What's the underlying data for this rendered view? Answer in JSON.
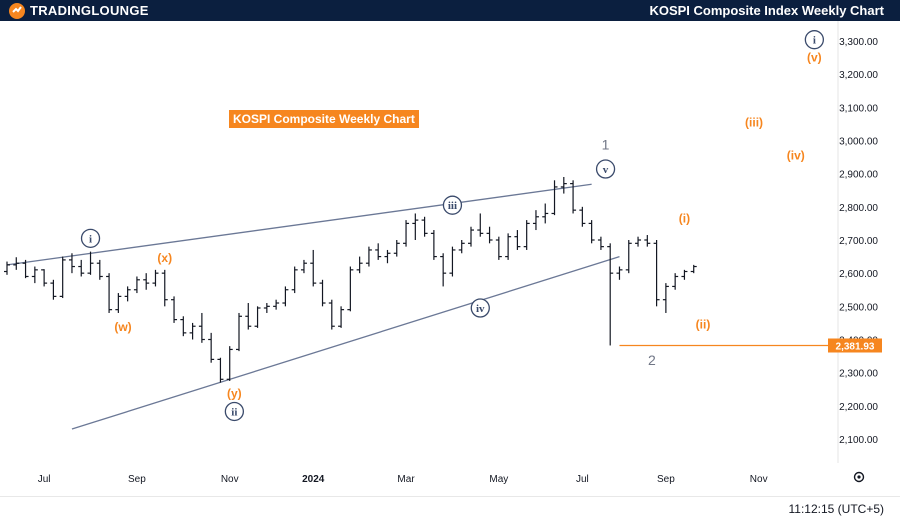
{
  "header": {
    "logo_text": "TradingLounge",
    "logo_display": "TRADINGLOUNGE",
    "title": "KOSPI Composite Index Weekly Chart"
  },
  "badge": {
    "text": "KOSPI Composite Weekly Chart"
  },
  "footer": {
    "clock": "11:12:15 (UTC+5)"
  },
  "colors": {
    "header_bg": "#0b1f3f",
    "orange": "#f6861f",
    "navy": "#3a4a6b",
    "price_tag": "#f6861f"
  },
  "chart_data": {
    "type": "ohlc",
    "title": "KOSPI Composite Weekly Chart",
    "y_axis": {
      "min": 2050,
      "max": 3350,
      "ticks": [
        2100,
        2200,
        2300,
        2400,
        2500,
        2600,
        2700,
        2800,
        2900,
        3000,
        3100,
        3200,
        3300
      ],
      "tick_labels": [
        "2,100.00",
        "2,200.00",
        "2,300.00",
        "2,400.00",
        "2,500.00",
        "2,600.00",
        "2,700.00",
        "2,800.00",
        "2,900.00",
        "3,000.00",
        "3,100.00",
        "3,200.00",
        "3,300.00"
      ]
    },
    "x_axis": {
      "first_week": "2023-06-05",
      "last_week": "2024-11-25",
      "labels": [
        {
          "text": "Jul",
          "week": 4
        },
        {
          "text": "Sep",
          "week": 14
        },
        {
          "text": "Nov",
          "week": 24
        },
        {
          "text": "2024",
          "week": 33
        },
        {
          "text": "Mar",
          "week": 43
        },
        {
          "text": "May",
          "week": 53
        },
        {
          "text": "Jul",
          "week": 62
        },
        {
          "text": "Sep",
          "week": 71
        },
        {
          "text": "Nov",
          "week": 81
        }
      ]
    },
    "ohlc": [
      [
        2605,
        2635,
        2595,
        2625
      ],
      [
        2625,
        2648,
        2610,
        2630
      ],
      [
        2630,
        2640,
        2585,
        2590
      ],
      [
        2590,
        2620,
        2570,
        2610
      ],
      [
        2610,
        2612,
        2560,
        2570
      ],
      [
        2570,
        2580,
        2520,
        2530
      ],
      [
        2530,
        2650,
        2525,
        2640
      ],
      [
        2640,
        2660,
        2600,
        2620
      ],
      [
        2620,
        2640,
        2590,
        2600
      ],
      [
        2600,
        2665,
        2595,
        2630
      ],
      [
        2630,
        2640,
        2580,
        2590
      ],
      [
        2590,
        2600,
        2480,
        2490
      ],
      [
        2490,
        2540,
        2480,
        2530
      ],
      [
        2530,
        2560,
        2515,
        2550
      ],
      [
        2550,
        2590,
        2540,
        2580
      ],
      [
        2580,
        2600,
        2550,
        2570
      ],
      [
        2570,
        2610,
        2560,
        2600
      ],
      [
        2600,
        2610,
        2500,
        2520
      ],
      [
        2520,
        2530,
        2450,
        2460
      ],
      [
        2460,
        2470,
        2410,
        2420
      ],
      [
        2420,
        2450,
        2400,
        2440
      ],
      [
        2440,
        2480,
        2390,
        2400
      ],
      [
        2400,
        2420,
        2330,
        2340
      ],
      [
        2340,
        2345,
        2270,
        2280
      ],
      [
        2280,
        2380,
        2275,
        2370
      ],
      [
        2370,
        2480,
        2365,
        2470
      ],
      [
        2470,
        2510,
        2430,
        2440
      ],
      [
        2440,
        2500,
        2435,
        2495
      ],
      [
        2495,
        2510,
        2480,
        2500
      ],
      [
        2500,
        2520,
        2490,
        2510
      ],
      [
        2510,
        2560,
        2500,
        2550
      ],
      [
        2550,
        2620,
        2540,
        2610
      ],
      [
        2610,
        2640,
        2600,
        2630
      ],
      [
        2630,
        2670,
        2560,
        2570
      ],
      [
        2570,
        2580,
        2500,
        2510
      ],
      [
        2510,
        2520,
        2430,
        2440
      ],
      [
        2440,
        2500,
        2435,
        2490
      ],
      [
        2490,
        2620,
        2485,
        2610
      ],
      [
        2610,
        2650,
        2600,
        2630
      ],
      [
        2630,
        2680,
        2620,
        2670
      ],
      [
        2670,
        2690,
        2640,
        2650
      ],
      [
        2650,
        2670,
        2630,
        2660
      ],
      [
        2660,
        2700,
        2650,
        2690
      ],
      [
        2690,
        2760,
        2680,
        2750
      ],
      [
        2750,
        2780,
        2700,
        2760
      ],
      [
        2760,
        2770,
        2710,
        2720
      ],
      [
        2720,
        2730,
        2640,
        2650
      ],
      [
        2650,
        2660,
        2560,
        2600
      ],
      [
        2600,
        2680,
        2590,
        2670
      ],
      [
        2670,
        2700,
        2660,
        2690
      ],
      [
        2690,
        2740,
        2680,
        2730
      ],
      [
        2730,
        2780,
        2710,
        2720
      ],
      [
        2720,
        2740,
        2690,
        2700
      ],
      [
        2700,
        2710,
        2640,
        2650
      ],
      [
        2650,
        2720,
        2640,
        2710
      ],
      [
        2710,
        2730,
        2670,
        2680
      ],
      [
        2680,
        2760,
        2670,
        2750
      ],
      [
        2750,
        2790,
        2730,
        2770
      ],
      [
        2770,
        2810,
        2750,
        2780
      ],
      [
        2780,
        2880,
        2775,
        2860
      ],
      [
        2860,
        2890,
        2840,
        2870
      ],
      [
        2870,
        2880,
        2780,
        2790
      ],
      [
        2790,
        2800,
        2740,
        2750
      ],
      [
        2750,
        2760,
        2690,
        2700
      ],
      [
        2700,
        2710,
        2670,
        2680
      ],
      [
        2680,
        2690,
        2382,
        2600
      ],
      [
        2600,
        2620,
        2580,
        2610
      ],
      [
        2610,
        2700,
        2600,
        2690
      ],
      [
        2690,
        2710,
        2680,
        2700
      ],
      [
        2700,
        2715,
        2680,
        2690
      ],
      [
        2690,
        2700,
        2500,
        2520
      ],
      [
        2520,
        2570,
        2480,
        2560
      ],
      [
        2560,
        2600,
        2550,
        2590
      ],
      [
        2590,
        2610,
        2580,
        2605
      ],
      [
        2605,
        2625,
        2600,
        2620
      ]
    ],
    "trendlines": [
      {
        "name": "upper-channel",
        "from": {
          "week": 0,
          "price": 2625
        },
        "to": {
          "week": 63,
          "price": 2868
        }
      },
      {
        "name": "lower-channel",
        "from": {
          "week": 7,
          "price": 2130
        },
        "to": {
          "week": 66,
          "price": 2650
        }
      }
    ],
    "horizontal_line": {
      "price": 2381.93,
      "label": "2,381.93",
      "from_week": 66
    },
    "wave_labels": [
      {
        "text": "i",
        "style": "circle",
        "week": 9,
        "price": 2705
      },
      {
        "text": "ii",
        "style": "circle",
        "week": 24.5,
        "price": 2183
      },
      {
        "text": "iii",
        "style": "circle",
        "week": 48,
        "price": 2805
      },
      {
        "text": "iv",
        "style": "circle",
        "week": 51,
        "price": 2495
      },
      {
        "text": "v",
        "style": "circle",
        "week": 64.5,
        "price": 2914
      },
      {
        "text": "i",
        "style": "circle",
        "week": 87,
        "price": 3304
      },
      {
        "text": "1",
        "style": "plain",
        "week": 64.5,
        "price": 2988
      },
      {
        "text": "2",
        "style": "plain",
        "week": 69.5,
        "price": 2338
      },
      {
        "text": "(x)",
        "style": "orange",
        "week": 17,
        "price": 2645
      },
      {
        "text": "(w)",
        "style": "orange",
        "week": 12.5,
        "price": 2437
      },
      {
        "text": "(y)",
        "style": "orange",
        "week": 24.5,
        "price": 2237
      },
      {
        "text": "(i)",
        "style": "orange",
        "week": 73,
        "price": 2765
      },
      {
        "text": "(ii)",
        "style": "orange",
        "week": 75,
        "price": 2445
      },
      {
        "text": "(iii)",
        "style": "orange",
        "week": 80.5,
        "price": 3055
      },
      {
        "text": "(iv)",
        "style": "orange",
        "week": 85,
        "price": 2955
      },
      {
        "text": "(v)",
        "style": "orange",
        "week": 87,
        "price": 3250
      }
    ]
  }
}
